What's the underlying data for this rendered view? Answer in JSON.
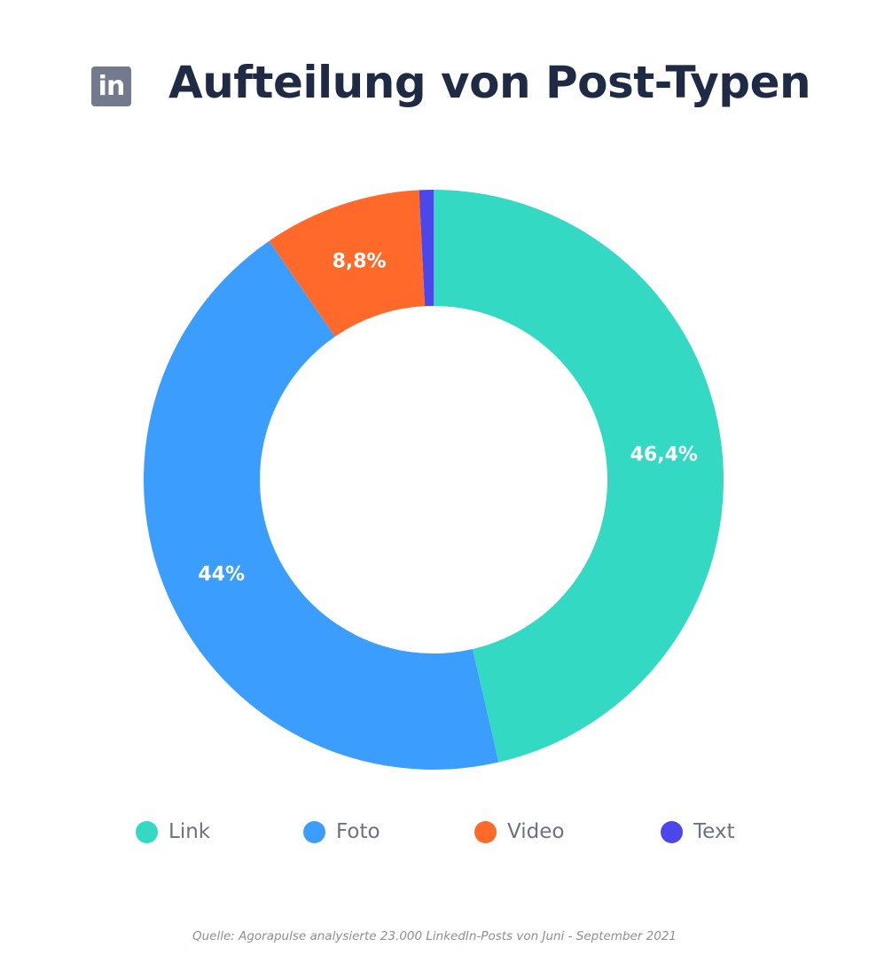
{
  "header": {
    "logo_text": "in",
    "logo_icon": "linkedin-icon",
    "title": "Aufteilung von Post-Typen"
  },
  "chart_data": {
    "type": "pie",
    "donut": true,
    "title": "Aufteilung von Post-Typen",
    "start": "top",
    "direction": "clockwise",
    "categories": [
      "Link",
      "Foto",
      "Video",
      "Text"
    ],
    "values": [
      46.4,
      44,
      8.8,
      0.8
    ],
    "labels": [
      "46,4%",
      "44%",
      "8,8%",
      ""
    ],
    "colors": [
      "#33d9c3",
      "#3b9eff",
      "#ff6a2a",
      "#4b47ea"
    ],
    "legend_position": "bottom"
  },
  "source": "Quelle: Agorapulse analysierte 23.000 LinkedIn-Posts von Juni - September 2021"
}
